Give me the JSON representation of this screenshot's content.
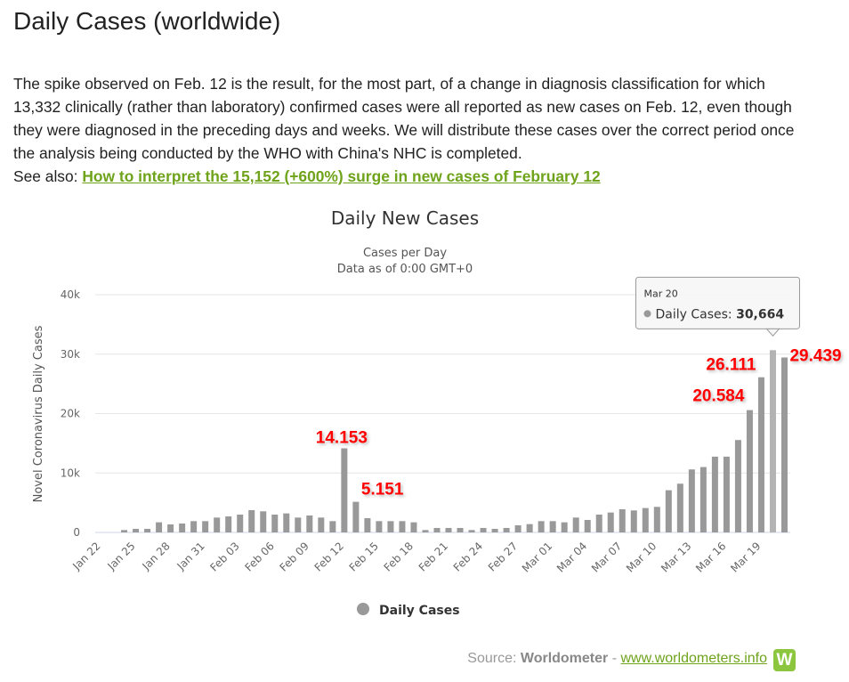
{
  "page": {
    "title": "Daily Cases (worldwide)",
    "description": "The spike observed on Feb. 12 is the result, for the most part, of a change in diagnosis classification for which 13,332 clinically (rather than laboratory) confirmed cases were all reported as new cases on Feb. 12, even though they were diagnosed in the preceding days and weeks. We will distribute these cases over the correct period once the analysis being conducted by the WHO with China's NHC is completed.",
    "see_also_label": "See also:",
    "see_also_link": "How to interpret the 15,152 (+600%) surge in new cases of February 12",
    "source_label": "Source:",
    "source_name": "Worldometer",
    "source_sep": "-",
    "source_link": "www.worldometers.info",
    "logo_letter": "W"
  },
  "colors": {
    "bar": "#999999",
    "bar_hover": "#b3b3b3",
    "annotation": "#ff0000",
    "link": "#6ea31b",
    "logo": "#8cc63f"
  },
  "chart_data": {
    "type": "bar",
    "title": "Daily New Cases",
    "subtitle": "Cases per Day",
    "subtitle2": "Data as of 0:00 GMT+0",
    "ylabel": "Novel Coronavirus Daily Cases",
    "xlabel": "",
    "ylim": [
      0,
      40000
    ],
    "yticks": [
      0,
      10000,
      20000,
      30000,
      40000
    ],
    "ytick_labels": [
      "0",
      "10k",
      "20k",
      "30k",
      "40k"
    ],
    "grid": true,
    "legend": {
      "position": "bottom-center",
      "entries": [
        "Daily Cases"
      ]
    },
    "categories": [
      "Jan 22",
      "Jan 23",
      "Jan 24",
      "Jan 25",
      "Jan 26",
      "Jan 27",
      "Jan 28",
      "Jan 29",
      "Jan 30",
      "Jan 31",
      "Feb 01",
      "Feb 02",
      "Feb 03",
      "Feb 04",
      "Feb 05",
      "Feb 06",
      "Feb 07",
      "Feb 08",
      "Feb 09",
      "Feb 10",
      "Feb 11",
      "Feb 12",
      "Feb 13",
      "Feb 14",
      "Feb 15",
      "Feb 16",
      "Feb 17",
      "Feb 18",
      "Feb 19",
      "Feb 20",
      "Feb 21",
      "Feb 22",
      "Feb 23",
      "Feb 24",
      "Feb 25",
      "Feb 26",
      "Feb 27",
      "Feb 28",
      "Feb 29",
      "Mar 01",
      "Mar 02",
      "Mar 03",
      "Mar 04",
      "Mar 05",
      "Mar 06",
      "Mar 07",
      "Mar 08",
      "Mar 09",
      "Mar 10",
      "Mar 11",
      "Mar 12",
      "Mar 13",
      "Mar 14",
      "Mar 15",
      "Mar 16",
      "Mar 17",
      "Mar 18",
      "Mar 19",
      "Mar 20",
      "Mar 21"
    ],
    "tick_labels": [
      "Jan 22",
      "Jan 25",
      "Jan 28",
      "Jan 31",
      "Feb 03",
      "Feb 06",
      "Feb 09",
      "Feb 12",
      "Feb 15",
      "Feb 18",
      "Feb 21",
      "Feb 24",
      "Feb 27",
      "Mar 01",
      "Mar 04",
      "Mar 07",
      "Mar 10",
      "Mar 13",
      "Mar 16",
      "Mar 19"
    ],
    "series": [
      {
        "name": "Daily Cases",
        "values": [
          0,
          0,
          400,
          600,
          600,
          1700,
          1350,
          1500,
          1900,
          1900,
          2500,
          2700,
          3000,
          3750,
          3550,
          3000,
          3200,
          2500,
          2850,
          2500,
          1900,
          14153,
          5151,
          2400,
          1900,
          1900,
          1900,
          1700,
          400,
          750,
          750,
          750,
          400,
          750,
          600,
          750,
          1200,
          1400,
          1900,
          1900,
          1700,
          2500,
          2100,
          3000,
          3350,
          3900,
          3700,
          4100,
          4300,
          7100,
          8200,
          10600,
          11000,
          12750,
          12750,
          15550,
          20584,
          26111,
          30664,
          29439
        ]
      }
    ],
    "annotations": [
      {
        "date": "Feb 12",
        "label": "14.153"
      },
      {
        "date": "Feb 13",
        "label": "5.151"
      },
      {
        "date": "Mar 18",
        "label": "20.584"
      },
      {
        "date": "Mar 19",
        "label": "26.111"
      },
      {
        "date": "Mar 21",
        "label": "29.439"
      }
    ],
    "tooltip": {
      "date": "Mar 20",
      "series": "Daily Cases:",
      "value": "30,664"
    }
  }
}
